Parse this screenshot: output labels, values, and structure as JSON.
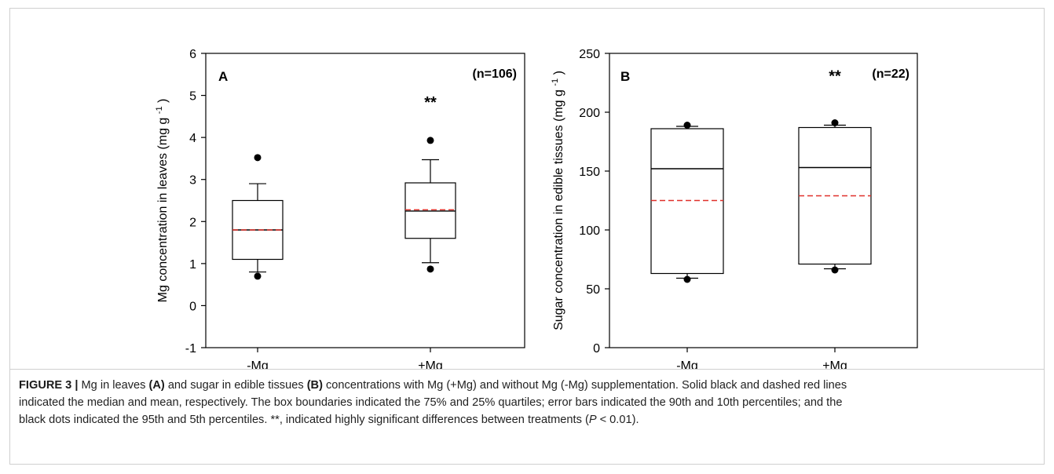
{
  "chart_data": [
    {
      "type": "box",
      "panel_label": "A",
      "n_label": "(n=106)",
      "xlabel": "",
      "ylabel": "Mg concentration in leaves (mg g",
      "ylabel_sup": "-1",
      "ylabel_close": ")",
      "ylim": [
        -1,
        6
      ],
      "yticks": [
        -1,
        0,
        1,
        2,
        3,
        4,
        5,
        6
      ],
      "categories": [
        "-Mg",
        "+Mg"
      ],
      "boxes": [
        {
          "category": "-Mg",
          "p5": 0.7,
          "p10": 0.8,
          "q1": 1.1,
          "median": 1.8,
          "mean": 1.8,
          "q3": 2.5,
          "p90": 2.9,
          "p95": 3.52
        },
        {
          "category": "+Mg",
          "p5": 0.87,
          "p10": 1.02,
          "q1": 1.6,
          "median": 2.25,
          "mean": 2.28,
          "q3": 2.92,
          "p90": 3.47,
          "p95": 3.93
        }
      ],
      "annotations": [
        {
          "category": "+Mg",
          "text": "**",
          "y": 4.9
        }
      ]
    },
    {
      "type": "box",
      "panel_label": "B",
      "n_label": "(n=22)",
      "xlabel": "",
      "ylabel": "Sugar concentration in edible tissues (mg g",
      "ylabel_sup": "-1",
      "ylabel_close": ")",
      "ylim": [
        0,
        250
      ],
      "yticks": [
        0,
        50,
        100,
        150,
        200,
        250
      ],
      "categories": [
        "-Mg",
        "+Mg"
      ],
      "boxes": [
        {
          "category": "-Mg",
          "p5": 58,
          "p10": 59,
          "q1": 63,
          "median": 152,
          "mean": 125,
          "q3": 186,
          "p90": 188,
          "p95": 189
        },
        {
          "category": "+Mg",
          "p5": 66,
          "p10": 67,
          "q1": 71,
          "median": 153,
          "mean": 129,
          "q3": 187,
          "p90": 189,
          "p95": 191
        }
      ],
      "annotations": [
        {
          "category": "+Mg",
          "text": "**",
          "y": 233
        }
      ]
    }
  ],
  "colors": {
    "median": "#000000",
    "mean": "#e0302a",
    "axis": "#000000",
    "caption_label": "#1a1a1a"
  },
  "caption": {
    "label": "FIGURE 3 |",
    "runs": [
      {
        "t": " Mg in leaves ",
        "s": "n"
      },
      {
        "t": "(A)",
        "s": "b"
      },
      {
        "t": " and sugar in edible tissues ",
        "s": "n"
      },
      {
        "t": "(B)",
        "s": "b"
      },
      {
        "t": " concentrations with Mg (+Mg) and without Mg (-Mg) supplementation. Solid black and dashed red lines",
        "s": "n"
      },
      {
        "t": "",
        "s": "br"
      },
      {
        "t": "indicated the median and mean, respectively. The box boundaries indicated the 75% and 25% quartiles; error bars indicated the 90th and 10th percentiles; and the",
        "s": "n"
      },
      {
        "t": "",
        "s": "br"
      },
      {
        "t": "black dots indicated the 95th and 5th percentiles. **, indicated highly significant differences between treatments (",
        "s": "n"
      },
      {
        "t": "P",
        "s": "i"
      },
      {
        "t": " < 0.01).",
        "s": "n"
      }
    ]
  }
}
